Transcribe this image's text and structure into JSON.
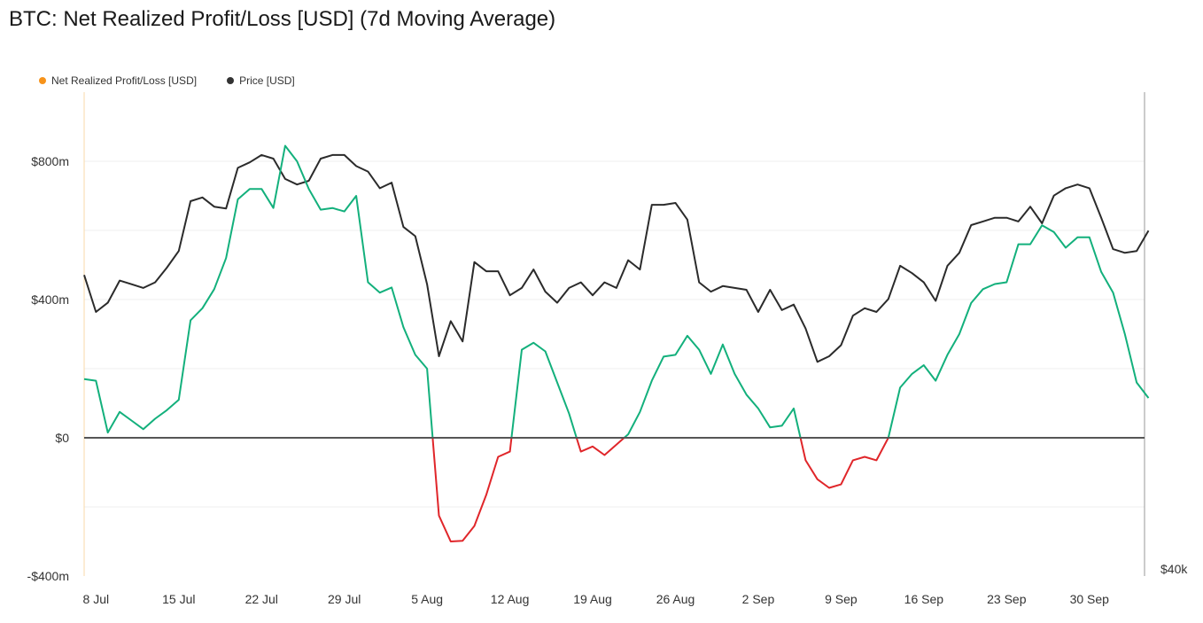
{
  "title": "BTC: Net Realized Profit/Loss [USD] (7d Moving Average)",
  "legend": {
    "series1": {
      "label": "Net Realized Profit/Loss [USD]",
      "color": "#f7931a"
    },
    "series2": {
      "label": "Price [USD]",
      "color": "#333333"
    }
  },
  "chart_data": {
    "type": "line",
    "title": "BTC: Net Realized Profit/Loss [USD] (7d Moving Average)",
    "x_ticks": [
      "8 Jul",
      "15 Jul",
      "22 Jul",
      "29 Jul",
      "5 Aug",
      "12 Aug",
      "19 Aug",
      "26 Aug",
      "2 Sep",
      "9 Sep",
      "16 Sep",
      "23 Sep",
      "30 Sep"
    ],
    "x_start": "2024-07-07",
    "y_left": {
      "ticks": [
        -400,
        0,
        400,
        800
      ],
      "tick_labels": [
        "-$400m",
        "$0",
        "$400m",
        "$800m"
      ],
      "range": [
        -400,
        1000
      ]
    },
    "y_right": {
      "tick_labels": [
        "$40k"
      ]
    },
    "colors": {
      "positive": "#13b07c",
      "negative": "#e0262a",
      "price": "#2b2b2b",
      "zero_line": "#555555"
    },
    "grid": true,
    "legend_position": "top-left",
    "series": [
      {
        "name": "Net Realized Profit/Loss [USD]",
        "unit": "USD millions",
        "values": [
          170,
          165,
          15,
          75,
          50,
          25,
          55,
          80,
          110,
          340,
          375,
          430,
          520,
          690,
          720,
          720,
          665,
          845,
          800,
          720,
          660,
          665,
          655,
          700,
          450,
          420,
          435,
          320,
          240,
          200,
          -225,
          -300,
          -298,
          -255,
          -165,
          -55,
          -40,
          255,
          275,
          250,
          160,
          70,
          -40,
          -25,
          -50,
          -20,
          10,
          75,
          165,
          235,
          240,
          295,
          255,
          185,
          270,
          185,
          125,
          85,
          30,
          35,
          85,
          -65,
          -120,
          -145,
          -135,
          -65,
          -55,
          -65,
          0,
          145,
          185,
          210,
          165,
          240,
          300,
          390,
          430,
          445,
          450,
          560,
          560,
          615,
          595,
          550,
          580,
          580,
          480,
          420,
          300,
          160,
          115
        ]
      },
      {
        "name": "Price [USD]",
        "unit": "USD thousands",
        "values": [
          56.3,
          54.3,
          54.8,
          56.0,
          55.8,
          55.6,
          55.9,
          56.7,
          57.6,
          60.3,
          60.5,
          60.0,
          59.9,
          62.1,
          62.4,
          62.8,
          62.6,
          61.5,
          61.2,
          61.4,
          62.6,
          62.8,
          62.8,
          62.2,
          61.9,
          61.0,
          61.3,
          58.9,
          58.4,
          55.8,
          51.9,
          53.8,
          52.7,
          57.0,
          56.5,
          56.5,
          55.2,
          55.6,
          56.6,
          55.4,
          54.8,
          55.6,
          55.9,
          55.2,
          55.9,
          55.6,
          57.1,
          56.6,
          60.1,
          60.1,
          60.2,
          59.3,
          55.9,
          55.4,
          55.7,
          55.6,
          55.5,
          54.3,
          55.5,
          54.4,
          54.7,
          53.4,
          51.6,
          51.9,
          52.5,
          54.1,
          54.5,
          54.3,
          55.0,
          56.8,
          56.4,
          55.9,
          54.9,
          56.8,
          57.5,
          59.0,
          59.2,
          59.4,
          59.4,
          59.2,
          60.0,
          59.1,
          60.6,
          61.0,
          61.2,
          61.0,
          59.4,
          57.7,
          57.5,
          57.6,
          58.7
        ]
      }
    ]
  }
}
